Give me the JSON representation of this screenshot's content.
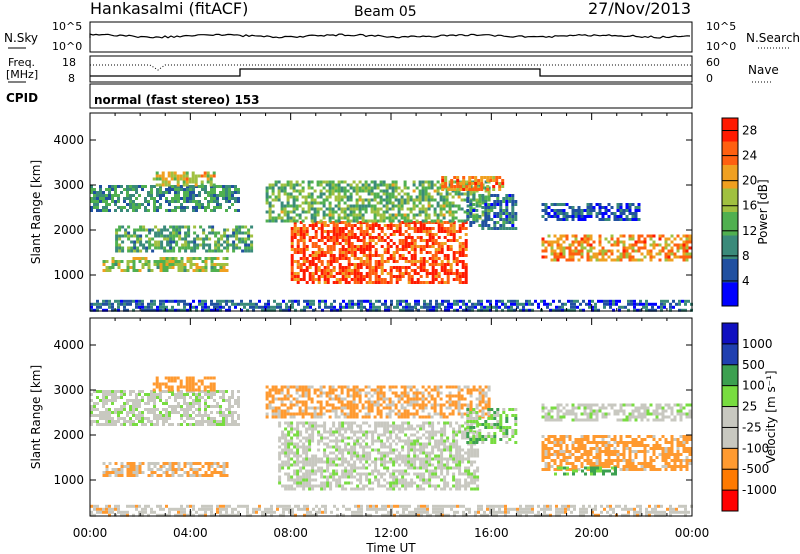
{
  "header": {
    "station": "Hankasalmi (fitACF)",
    "beam": "Beam 05",
    "date": "27/Nov/2013"
  },
  "noise_panel": {
    "left_label": "N.Sky",
    "right_label": "N.Search",
    "left_ticks": [
      "10^5",
      "10^0"
    ],
    "right_ticks": [
      "10^5",
      "10^0"
    ]
  },
  "freq_panel": {
    "left_label_1": "Freq.",
    "left_label_2": "[MHz]",
    "right_label": "Nave",
    "left_ticks": [
      "18",
      "8"
    ],
    "right_ticks": [
      "60",
      "0"
    ]
  },
  "cpid_panel": {
    "label": "CPID",
    "mode_text": "normal (fast stereo) 153"
  },
  "colors": {
    "power": [
      "#0000ff",
      "#2050a0",
      "#3a8a7a",
      "#50b050",
      "#a0c040",
      "#f0a020",
      "#ff6010",
      "#ff1a00"
    ],
    "velocity": [
      "#ff0000",
      "#ff7a00",
      "#ff9a30",
      "#c8c8c0",
      "#c8c8c0",
      "#78dc40",
      "#3ca050",
      "#2040b0",
      "#1010c0"
    ]
  },
  "chart_data": [
    {
      "type": "heatmap",
      "name": "power",
      "ylabel": "Slant Range [km]",
      "xlabel": "",
      "x_ticks": [
        "00:00",
        "04:00",
        "08:00",
        "12:00",
        "16:00",
        "20:00",
        "00:00"
      ],
      "y_ticks": [
        "1000",
        "2000",
        "3000",
        "4000"
      ],
      "ylim": [
        200,
        4600
      ],
      "colorbar_label": "Power [dB]",
      "colorbar_ticks": [
        "4",
        "8",
        "12",
        "16",
        "20",
        "24",
        "28"
      ],
      "colorbar_range": [
        0,
        30
      ],
      "scatter_regions": [
        {
          "t": [
            0.0,
            6.0
          ],
          "r": [
            2400,
            3000
          ],
          "v": 10
        },
        {
          "t": [
            0.5,
            5.5
          ],
          "r": [
            1100,
            1400
          ],
          "v": 16
        },
        {
          "t": [
            1.0,
            6.5
          ],
          "r": [
            1500,
            2100
          ],
          "v": 12
        },
        {
          "t": [
            2.5,
            5.0
          ],
          "r": [
            3000,
            3300
          ],
          "v": 18
        },
        {
          "t": [
            8.0,
            15.0
          ],
          "r": [
            800,
            2200
          ],
          "v": 26
        },
        {
          "t": [
            7.0,
            16.0
          ],
          "r": [
            2200,
            3100
          ],
          "v": 14
        },
        {
          "t": [
            14.0,
            16.5
          ],
          "r": [
            2900,
            3200
          ],
          "v": 22
        },
        {
          "t": [
            15.0,
            17.0
          ],
          "r": [
            2000,
            2800
          ],
          "v": 8
        },
        {
          "t": [
            18.0,
            24.0
          ],
          "r": [
            1300,
            1900
          ],
          "v": 22
        },
        {
          "t": [
            18.0,
            22.0
          ],
          "r": [
            2200,
            2600
          ],
          "v": 6
        },
        {
          "t": [
            0.0,
            24.0
          ],
          "r": [
            200,
            450
          ],
          "v": 6
        }
      ]
    },
    {
      "type": "heatmap",
      "name": "velocity",
      "ylabel": "Slant Range [km]",
      "xlabel": "Time UT",
      "x_ticks": [
        "00:00",
        "04:00",
        "08:00",
        "12:00",
        "16:00",
        "20:00",
        "00:00"
      ],
      "y_ticks": [
        "1000",
        "2000",
        "3000",
        "4000"
      ],
      "ylim": [
        200,
        4600
      ],
      "colorbar_label": "Velocity [m s⁻¹]",
      "colorbar_ticks": [
        "1000",
        "500",
        "100",
        "25",
        "-25",
        "-100",
        "-500",
        "-1000"
      ],
      "scatter_regions": [
        {
          "t": [
            0.0,
            6.0
          ],
          "r": [
            2200,
            3000
          ],
          "v": 0
        },
        {
          "t": [
            0.5,
            5.5
          ],
          "r": [
            1100,
            1400
          ],
          "v": -100
        },
        {
          "t": [
            2.5,
            5.0
          ],
          "r": [
            3000,
            3300
          ],
          "v": -300
        },
        {
          "t": [
            7.5,
            15.5
          ],
          "r": [
            800,
            2300
          ],
          "v": 0
        },
        {
          "t": [
            7.0,
            16.0
          ],
          "r": [
            2400,
            3100
          ],
          "v": -150
        },
        {
          "t": [
            15.0,
            17.0
          ],
          "r": [
            1800,
            2600
          ],
          "v": 60
        },
        {
          "t": [
            18.0,
            24.0
          ],
          "r": [
            1200,
            2000
          ],
          "v": -200
        },
        {
          "t": [
            18.5,
            21.0
          ],
          "r": [
            1100,
            1300
          ],
          "v": 120
        },
        {
          "t": [
            18.0,
            24.0
          ],
          "r": [
            2300,
            2700
          ],
          "v": 0
        },
        {
          "t": [
            0.0,
            24.0
          ],
          "r": [
            200,
            450
          ],
          "v": -50
        }
      ]
    }
  ]
}
